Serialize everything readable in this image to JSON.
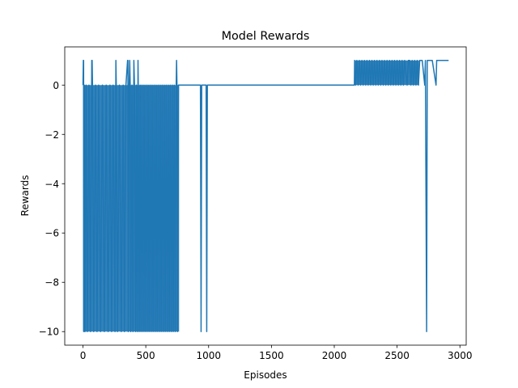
{
  "chart_data": {
    "type": "line",
    "title": "Model Rewards",
    "xlabel": "Episodes",
    "ylabel": "Rewards",
    "xlim": [
      -145,
      3050
    ],
    "ylim": [
      -10.55,
      1.55
    ],
    "xticks": [
      0,
      500,
      1000,
      1500,
      2000,
      2500,
      3000
    ],
    "xtick_labels": [
      "0",
      "500",
      "1000",
      "1500",
      "2000",
      "2500",
      "3000"
    ],
    "yticks": [
      -10,
      -8,
      -6,
      -4,
      -2,
      0
    ],
    "ytick_labels": [
      "−10",
      "−8",
      "−6",
      "−4",
      "−2",
      "0"
    ],
    "grid": false,
    "series": [
      {
        "color": "#1f77b4",
        "segments": [
          {
            "x_start": 0,
            "x_end": 765,
            "pattern": "dense alternating between 0 and -10 with occasional spikes to 1"
          },
          {
            "x_start": 765,
            "x_end": 2160,
            "pattern": "mostly 0"
          },
          {
            "x_start": 2160,
            "x_end": 2910,
            "pattern": "dense alternating between 0 and 1, ending at 1"
          }
        ],
        "points": [
          [
            0,
            0
          ],
          [
            3,
            1
          ],
          [
            5,
            1
          ],
          [
            7,
            -10
          ],
          [
            10,
            0
          ],
          [
            16,
            -10
          ],
          [
            25,
            0
          ],
          [
            35,
            -10
          ],
          [
            48,
            0
          ],
          [
            60,
            -10
          ],
          [
            70,
            1
          ],
          [
            73,
            1
          ],
          [
            76,
            0
          ],
          [
            85,
            -10
          ],
          [
            100,
            0
          ],
          [
            112,
            -10
          ],
          [
            125,
            0
          ],
          [
            140,
            -10
          ],
          [
            155,
            0
          ],
          [
            170,
            -10
          ],
          [
            185,
            0
          ],
          [
            200,
            -10
          ],
          [
            215,
            0
          ],
          [
            228,
            -10
          ],
          [
            240,
            0
          ],
          [
            255,
            -10
          ],
          [
            262,
            1
          ],
          [
            265,
            0
          ],
          [
            275,
            -10
          ],
          [
            290,
            0
          ],
          [
            305,
            -10
          ],
          [
            320,
            0
          ],
          [
            330,
            -10
          ],
          [
            342,
            0
          ],
          [
            355,
            1
          ],
          [
            358,
            1
          ],
          [
            360,
            -10
          ],
          [
            368,
            0
          ],
          [
            372,
            1
          ],
          [
            376,
            0
          ],
          [
            380,
            -10
          ],
          [
            390,
            0
          ],
          [
            398,
            -10
          ],
          [
            405,
            1
          ],
          [
            410,
            0
          ],
          [
            418,
            -10
          ],
          [
            425,
            0
          ],
          [
            432,
            -10
          ],
          [
            438,
            1
          ],
          [
            440,
            0
          ],
          [
            447,
            -10
          ],
          [
            455,
            0
          ],
          [
            462,
            -10
          ],
          [
            470,
            0
          ],
          [
            478,
            -10
          ],
          [
            486,
            0
          ],
          [
            494,
            -10
          ],
          [
            502,
            0
          ],
          [
            510,
            -10
          ],
          [
            518,
            0
          ],
          [
            526,
            -10
          ],
          [
            534,
            0
          ],
          [
            542,
            -10
          ],
          [
            550,
            0
          ],
          [
            558,
            -10
          ],
          [
            566,
            0
          ],
          [
            574,
            -10
          ],
          [
            582,
            0
          ],
          [
            590,
            -10
          ],
          [
            598,
            0
          ],
          [
            606,
            -10
          ],
          [
            614,
            0
          ],
          [
            622,
            -10
          ],
          [
            630,
            0
          ],
          [
            638,
            -10
          ],
          [
            646,
            0
          ],
          [
            654,
            -10
          ],
          [
            662,
            0
          ],
          [
            670,
            -10
          ],
          [
            678,
            0
          ],
          [
            686,
            -10
          ],
          [
            694,
            0
          ],
          [
            702,
            -10
          ],
          [
            710,
            0
          ],
          [
            718,
            -10
          ],
          [
            726,
            0
          ],
          [
            734,
            -10
          ],
          [
            742,
            0
          ],
          [
            745,
            1
          ],
          [
            748,
            0
          ],
          [
            752,
            -10
          ],
          [
            760,
            0
          ],
          [
            935,
            0
          ],
          [
            940,
            -10
          ],
          [
            945,
            0
          ],
          [
            980,
            0
          ],
          [
            985,
            -10
          ],
          [
            990,
            0
          ],
          [
            2160,
            0
          ],
          [
            2162,
            1
          ],
          [
            2170,
            0
          ],
          [
            2180,
            1
          ],
          [
            2190,
            0
          ],
          [
            2200,
            1
          ],
          [
            2210,
            0
          ],
          [
            2220,
            1
          ],
          [
            2230,
            0
          ],
          [
            2240,
            1
          ],
          [
            2250,
            0
          ],
          [
            2260,
            1
          ],
          [
            2270,
            0
          ],
          [
            2280,
            1
          ],
          [
            2290,
            0
          ],
          [
            2300,
            1
          ],
          [
            2310,
            0
          ],
          [
            2320,
            1
          ],
          [
            2330,
            0
          ],
          [
            2340,
            1
          ],
          [
            2350,
            0
          ],
          [
            2360,
            1
          ],
          [
            2370,
            0
          ],
          [
            2380,
            1
          ],
          [
            2390,
            0
          ],
          [
            2400,
            1
          ],
          [
            2410,
            0
          ],
          [
            2420,
            1
          ],
          [
            2430,
            0
          ],
          [
            2440,
            1
          ],
          [
            2450,
            0
          ],
          [
            2460,
            1
          ],
          [
            2470,
            0
          ],
          [
            2480,
            1
          ],
          [
            2490,
            0
          ],
          [
            2500,
            1
          ],
          [
            2510,
            0
          ],
          [
            2520,
            1
          ],
          [
            2530,
            0
          ],
          [
            2540,
            1
          ],
          [
            2550,
            0
          ],
          [
            2560,
            1
          ],
          [
            2580,
            0
          ],
          [
            2590,
            1
          ],
          [
            2600,
            1
          ],
          [
            2610,
            0
          ],
          [
            2620,
            1
          ],
          [
            2630,
            0
          ],
          [
            2640,
            1
          ],
          [
            2650,
            0
          ],
          [
            2660,
            1
          ],
          [
            2670,
            0
          ],
          [
            2680,
            1
          ],
          [
            2700,
            1
          ],
          [
            2720,
            0
          ],
          [
            2725,
            1
          ],
          [
            2735,
            -10
          ],
          [
            2740,
            1
          ],
          [
            2780,
            1
          ],
          [
            2810,
            0
          ],
          [
            2815,
            1
          ],
          [
            2910,
            1
          ]
        ]
      }
    ]
  }
}
